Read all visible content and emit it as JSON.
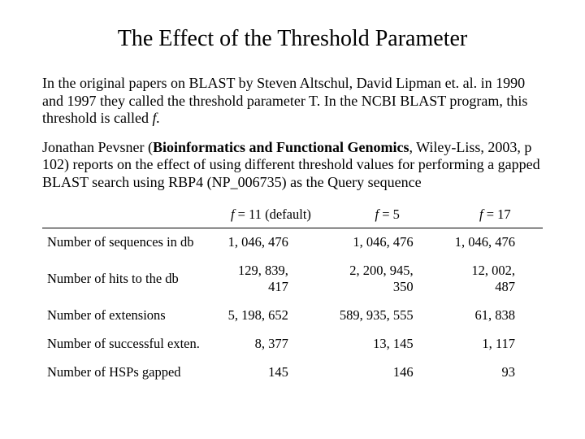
{
  "title": "The Effect of the Threshold Parameter",
  "para1_pre": "In the original papers on BLAST by Steven Altschul, David Lipman et. al. in 1990 and 1997 they called the threshold parameter T.  In the NCBI BLAST program, this threshold is called ",
  "para1_f": "f.",
  "para2_pre": "Jonathan Pevsner (",
  "para2_book": "Bioinformatics and Functional Genomics",
  "para2_post": ", Wiley-Liss, 2003, p 102) reports on the effect of using different threshold values for performing a gapped BLAST search using RBP4 (NP_006735) as the Query sequence",
  "table": {
    "type": "table",
    "columns": [
      {
        "f_label": "f",
        "rest": " = 11 (default)"
      },
      {
        "f_label": "f",
        "rest": " = 5"
      },
      {
        "f_label": "f",
        "rest": " = 17"
      }
    ],
    "rows": [
      {
        "label": "Number of sequences in db",
        "c1": "1, 046, 476",
        "c2": "1, 046, 476",
        "c3": "1, 046, 476"
      },
      {
        "label": "Number of hits to the db",
        "c1": "129, 839, 417",
        "c2": "2, 200, 945, 350",
        "c3": "12, 002, 487"
      },
      {
        "label": "Number of extensions",
        "c1": "5, 198, 652",
        "c2": "589, 935, 555",
        "c3": "61, 838"
      },
      {
        "label": "Number of successful exten.",
        "c1": "8, 377",
        "c2": "13, 145",
        "c3": "1, 117"
      },
      {
        "label": "Number of HSPs gapped",
        "c1": "145",
        "c2": "146",
        "c3": "93"
      }
    ],
    "border_color": "#000000",
    "font_size_pt": 12,
    "background_color": "#ffffff"
  }
}
